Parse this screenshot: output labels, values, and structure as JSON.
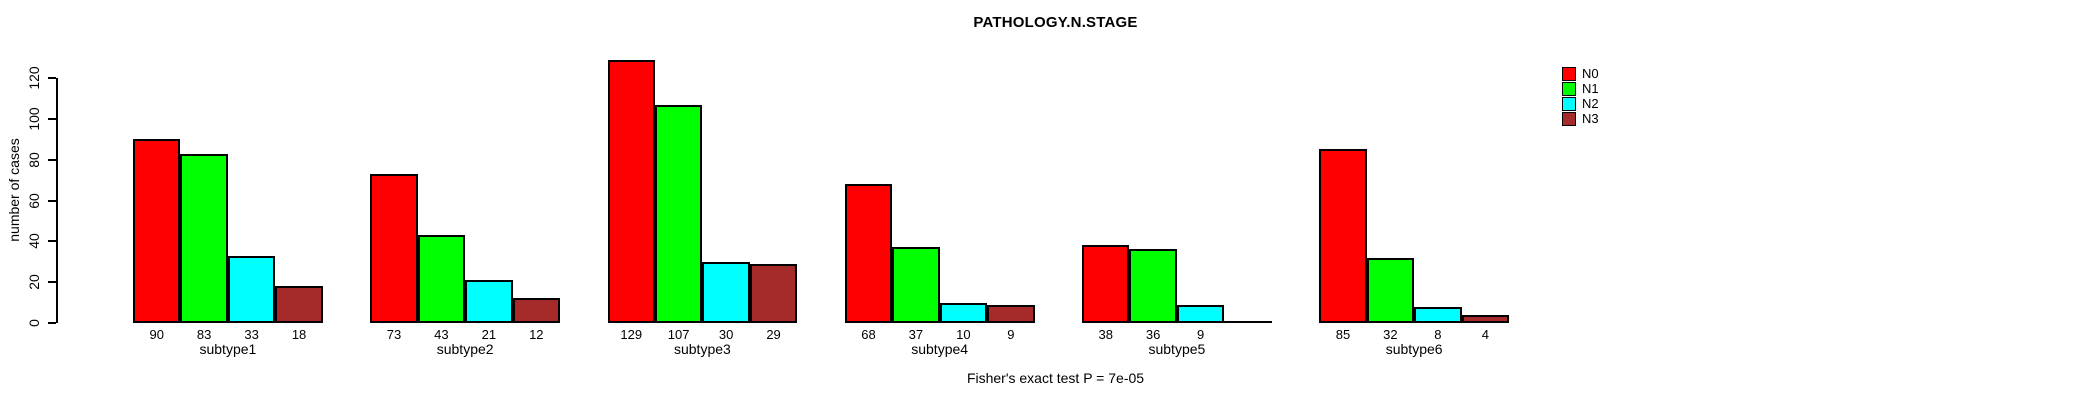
{
  "chart_data": {
    "type": "bar",
    "title": "PATHOLOGY.N.STAGE",
    "ylabel": "number of cases",
    "xlabel": "",
    "ylim": [
      0,
      130
    ],
    "yticks": [
      0,
      20,
      40,
      60,
      80,
      100,
      120
    ],
    "grid": false,
    "legend_position": "topright-outside",
    "categories": [
      "subtype1",
      "subtype2",
      "subtype3",
      "subtype4",
      "subtype5",
      "subtype6"
    ],
    "series": [
      {
        "name": "N0",
        "color": "#FF0000",
        "values": [
          90,
          73,
          129,
          68,
          38,
          85
        ]
      },
      {
        "name": "N1",
        "color": "#00FF00",
        "values": [
          83,
          43,
          107,
          37,
          36,
          32
        ]
      },
      {
        "name": "N2",
        "color": "#00FFFF",
        "values": [
          33,
          21,
          30,
          10,
          9,
          8
        ]
      },
      {
        "name": "N3",
        "color": "#A52A2A",
        "values": [
          18,
          12,
          29,
          9,
          0,
          4
        ]
      }
    ],
    "bar_labels": [
      [
        "90",
        "83",
        "33",
        "18"
      ],
      [
        "73",
        "43",
        "21",
        "12"
      ],
      [
        "129",
        "107",
        "30",
        "29"
      ],
      [
        "68",
        "37",
        "10",
        "9"
      ],
      [
        "38",
        "36",
        "9",
        null
      ],
      [
        "85",
        "32",
        "8",
        "4"
      ]
    ],
    "annotation": "Fisher's exact test P = 7e-05"
  }
}
